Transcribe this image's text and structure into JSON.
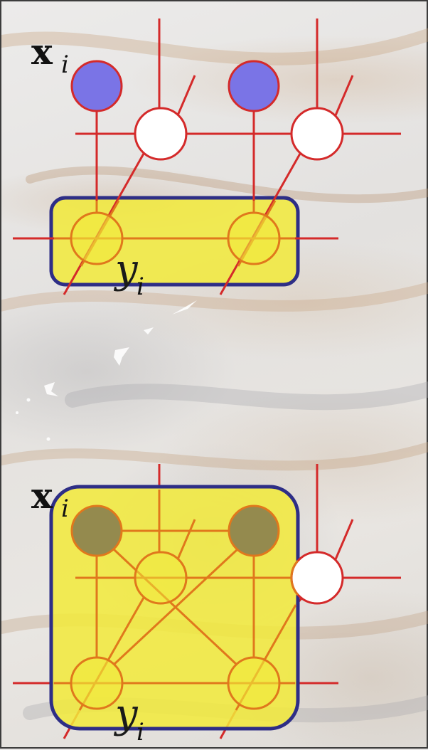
{
  "panels": [
    {
      "x_label": "x",
      "x_subscript": "i",
      "y_label": "y",
      "y_subscript": "i"
    },
    {
      "x_label": "x",
      "x_subscript": "i",
      "y_label": "y",
      "y_subscript": "i"
    }
  ],
  "colors": {
    "edge": "#d42a2a",
    "edge_in_box": "#e0781c",
    "observed_node": "#7a74e6",
    "box_fill": "#f2ea3a",
    "box_stroke": "#2e2e86"
  }
}
